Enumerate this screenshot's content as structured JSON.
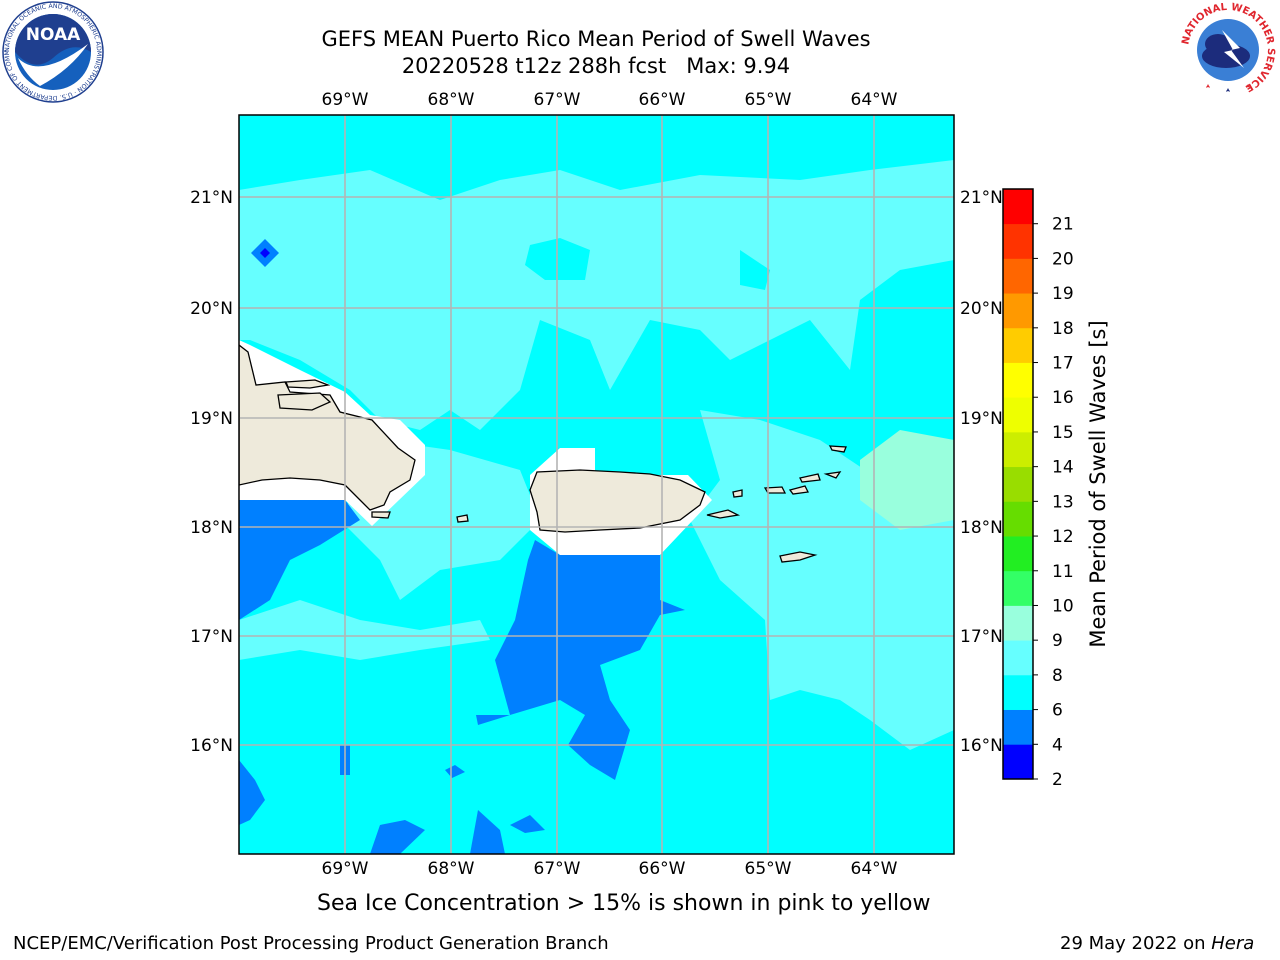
{
  "header": {
    "title_line1": "GEFS MEAN Puerto Rico Mean Period of Swell Waves",
    "title_line2": "20220528 t12z 288h fcst   Max: 9.94"
  },
  "logos": {
    "left": "NOAA",
    "left_ring_text": "NATIONAL OCEANIC AND ATMOSPHERIC ADMINISTRATION · U.S. DEPARTMENT OF COMMERCE",
    "right_ring_text": "NATIONAL WEATHER SERVICE"
  },
  "map": {
    "lon_labels": [
      "69°W",
      "68°W",
      "67°W",
      "66°W",
      "65°W",
      "64°W"
    ],
    "lat_labels": [
      "21°N",
      "20°N",
      "19°N",
      "18°N",
      "17°N",
      "16°N"
    ],
    "lon_range": [
      -70.0,
      -63.25
    ],
    "lat_range": [
      15.0,
      21.75
    ],
    "grid": true
  },
  "colorbar": {
    "label": "Mean Period of Swell Waves [s]",
    "ticks": [
      "2",
      "4",
      "6",
      "8",
      "9",
      "10",
      "11",
      "12",
      "13",
      "14",
      "15",
      "16",
      "17",
      "18",
      "19",
      "20",
      "21"
    ],
    "colors": [
      "#0000ff",
      "#0080ff",
      "#00ffff",
      "#66ffff",
      "#99ffdd",
      "#33ff66",
      "#22ee22",
      "#66dd00",
      "#99dd00",
      "#ccee00",
      "#eeff00",
      "#ffff00",
      "#ffcc00",
      "#ff9900",
      "#ff6600",
      "#ff3300",
      "#ff0000"
    ]
  },
  "note": "Sea Ice Concentration > 15% is shown in pink to yellow",
  "footer": {
    "left": "NCEP/EMC/Verification Post Processing Product Generation Branch",
    "right_prefix": "29 May 2022 on ",
    "right_host": "Hera"
  }
}
